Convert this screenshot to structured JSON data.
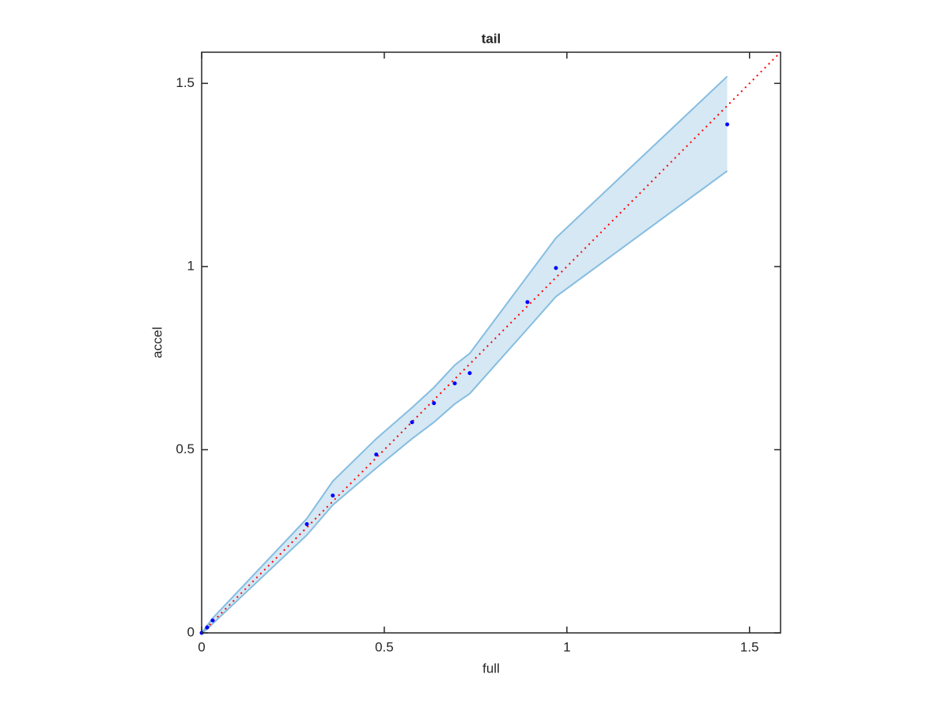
{
  "chart_data": {
    "type": "scatter",
    "title": "tail",
    "x_label": "full",
    "y_label": "accel",
    "x": [
      0,
      0.015,
      0.03,
      0.288,
      0.359,
      0.478,
      0.576,
      0.636,
      0.693,
      0.734,
      0.892,
      0.97,
      1.439
    ],
    "y": [
      0,
      0.015,
      0.034,
      0.297,
      0.375,
      0.487,
      0.575,
      0.627,
      0.681,
      0.709,
      0.903,
      0.996,
      1.388
    ],
    "band_upper": [
      0,
      0.02,
      0.04,
      0.312,
      0.414,
      0.53,
      0.615,
      0.67,
      0.731,
      0.763,
      0.974,
      1.078,
      1.519
    ],
    "band_lower": [
      0,
      0.01,
      0.025,
      0.267,
      0.349,
      0.45,
      0.53,
      0.575,
      0.625,
      0.653,
      0.83,
      0.918,
      1.261
    ],
    "point_color": "#0000ff",
    "band_color": "#d5e8f4",
    "band_edge_color": "#86bde0",
    "reference": {
      "x": [
        0,
        1.585
      ],
      "y": [
        0,
        1.585
      ],
      "color": "#ff0000"
    },
    "xlim": [
      0,
      1.585
    ],
    "ylim": [
      0,
      1.585
    ],
    "xticks": [
      0,
      0.5,
      1,
      1.5
    ],
    "yticks": [
      0,
      0.5,
      1,
      1.5
    ]
  }
}
